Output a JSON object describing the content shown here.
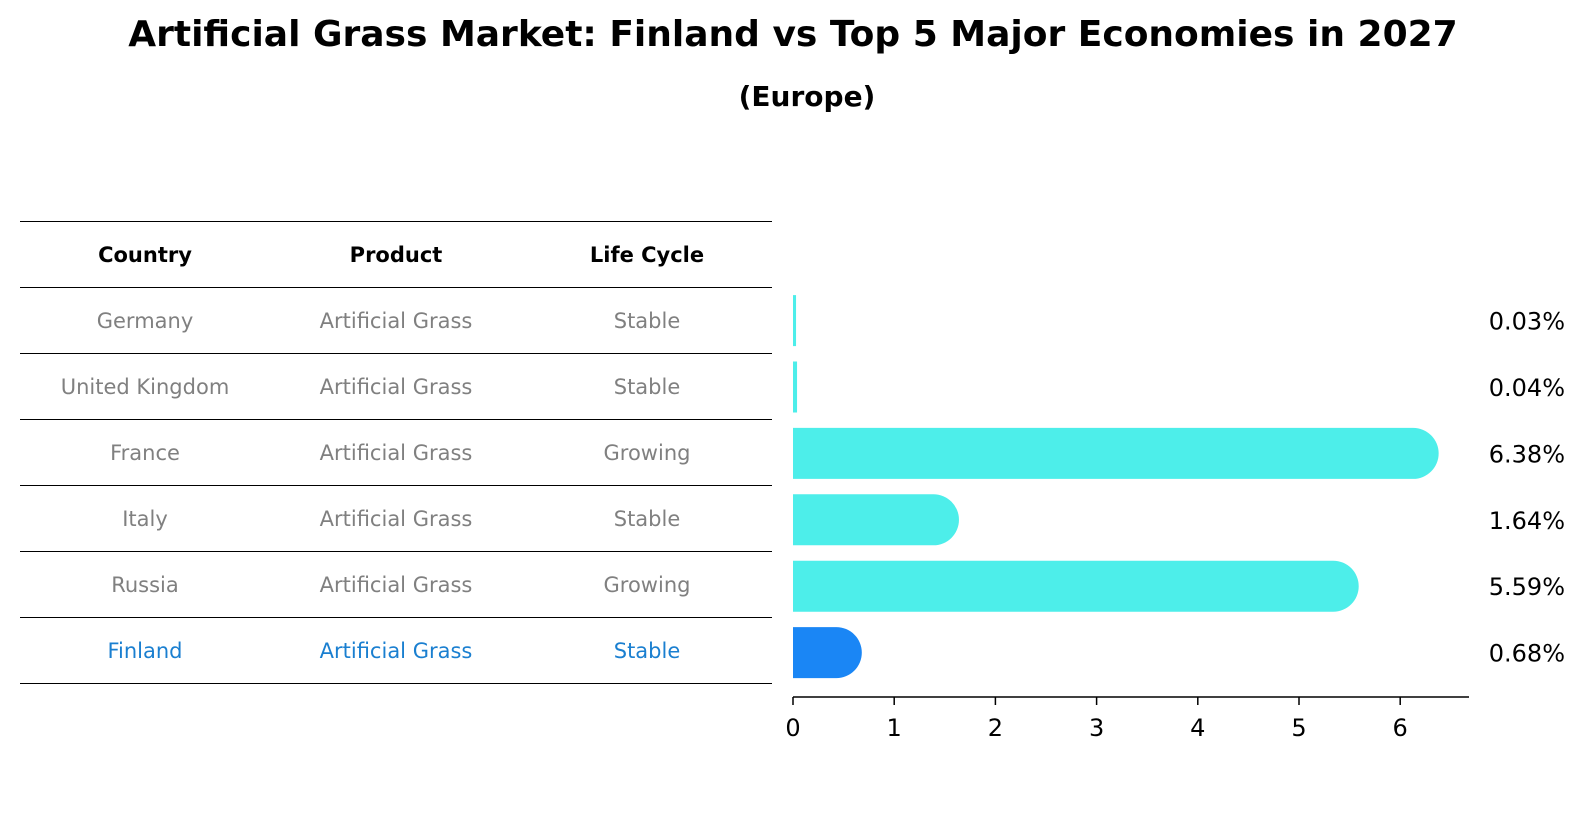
{
  "chart_data": {
    "type": "bar",
    "orientation": "horizontal",
    "title": "Artificial Grass Market: Finland vs Top 5 Major Economies in 2027",
    "subtitle": "(Europe)",
    "categories": [
      "Germany",
      "United Kingdom",
      "France",
      "Italy",
      "Russia",
      "Finland"
    ],
    "values": [
      0.03,
      0.04,
      6.38,
      1.64,
      5.59,
      0.68
    ],
    "value_labels": [
      "0.03%",
      "0.04%",
      "6.38%",
      "1.64%",
      "5.59%",
      "0.68%"
    ],
    "highlight_category": "Finland",
    "xlim": [
      0,
      6.7
    ],
    "xticks": [
      "0",
      "1",
      "2",
      "3",
      "4",
      "5",
      "6"
    ],
    "colors": {
      "bar": "#4deeea",
      "highlight": "#1a86f5"
    }
  },
  "table": {
    "headers": [
      "Country",
      "Product",
      "Life Cycle"
    ],
    "rows": [
      [
        "Germany",
        "Artificial Grass",
        "Stable"
      ],
      [
        "United Kingdom",
        "Artificial Grass",
        "Stable"
      ],
      [
        "France",
        "Artificial Grass",
        "Growing"
      ],
      [
        "Italy",
        "Artificial Grass",
        "Stable"
      ],
      [
        "Russia",
        "Artificial Grass",
        "Growing"
      ],
      [
        "Finland",
        "Artificial Grass",
        "Stable"
      ]
    ]
  }
}
